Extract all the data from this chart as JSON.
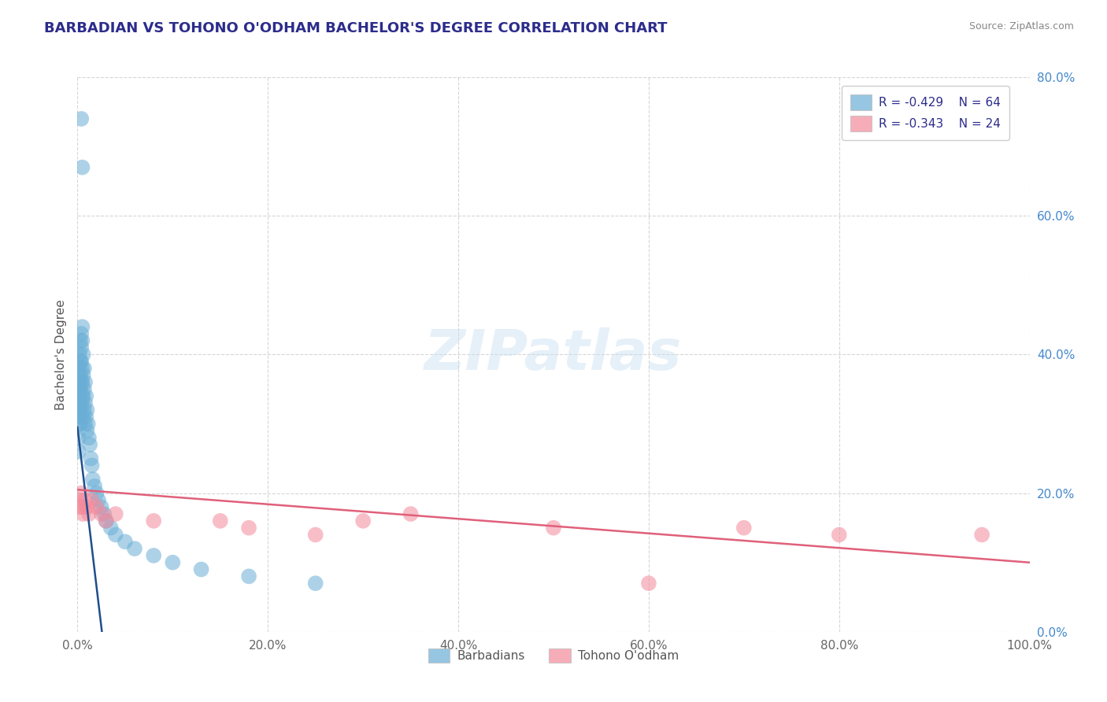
{
  "title": "BARBADIAN VS TOHONO O'ODHAM BACHELOR'S DEGREE CORRELATION CHART",
  "source_text": "Source: ZipAtlas.com",
  "ylabel": "Bachelor's Degree",
  "xlim": [
    0.0,
    1.0
  ],
  "ylim": [
    0.0,
    0.8
  ],
  "xticks": [
    0.0,
    0.2,
    0.4,
    0.6,
    0.8,
    1.0
  ],
  "xtick_labels": [
    "0.0%",
    "20.0%",
    "40.0%",
    "60.0%",
    "80.0%",
    "100.0%"
  ],
  "yticks": [
    0.0,
    0.2,
    0.4,
    0.6,
    0.8
  ],
  "ytick_labels": [
    "0.0%",
    "20.0%",
    "40.0%",
    "60.0%",
    "80.0%"
  ],
  "legend_bottom_labels": [
    "Barbadians",
    "Tohono O'odham"
  ],
  "watermark": "ZIPatlas",
  "blue_color": "#6aaed6",
  "pink_color": "#f48a9b",
  "blue_line_color": "#1f4e8c",
  "pink_line_color": "#e0607a",
  "background_color": "#ffffff",
  "grid_color": "#cccccc",
  "title_color": "#2c2c8c",
  "ytick_color": "#4488cc",
  "xtick_color": "#666666",
  "blue_R": -0.429,
  "blue_N": 64,
  "pink_R": -0.343,
  "pink_N": 24,
  "blue_scatter_x": [
    0.001,
    0.001,
    0.001,
    0.001,
    0.001,
    0.002,
    0.002,
    0.002,
    0.002,
    0.002,
    0.002,
    0.003,
    0.003,
    0.003,
    0.003,
    0.003,
    0.003,
    0.004,
    0.004,
    0.004,
    0.004,
    0.004,
    0.005,
    0.005,
    0.005,
    0.005,
    0.005,
    0.006,
    0.006,
    0.006,
    0.006,
    0.007,
    0.007,
    0.007,
    0.008,
    0.008,
    0.008,
    0.009,
    0.009,
    0.01,
    0.01,
    0.011,
    0.012,
    0.013,
    0.014,
    0.015,
    0.016,
    0.018,
    0.02,
    0.022,
    0.025,
    0.028,
    0.03,
    0.035,
    0.04,
    0.05,
    0.06,
    0.08,
    0.1,
    0.13,
    0.18,
    0.25,
    0.004,
    0.005
  ],
  "blue_scatter_y": [
    0.35,
    0.33,
    0.31,
    0.28,
    0.26,
    0.4,
    0.38,
    0.36,
    0.34,
    0.32,
    0.3,
    0.42,
    0.39,
    0.37,
    0.35,
    0.32,
    0.3,
    0.43,
    0.41,
    0.39,
    0.36,
    0.33,
    0.44,
    0.42,
    0.38,
    0.36,
    0.34,
    0.4,
    0.37,
    0.34,
    0.31,
    0.38,
    0.35,
    0.32,
    0.36,
    0.33,
    0.3,
    0.34,
    0.31,
    0.32,
    0.29,
    0.3,
    0.28,
    0.27,
    0.25,
    0.24,
    0.22,
    0.21,
    0.2,
    0.19,
    0.18,
    0.17,
    0.16,
    0.15,
    0.14,
    0.13,
    0.12,
    0.11,
    0.1,
    0.09,
    0.08,
    0.07,
    0.74,
    0.67
  ],
  "pink_scatter_x": [
    0.002,
    0.003,
    0.004,
    0.005,
    0.006,
    0.008,
    0.01,
    0.012,
    0.015,
    0.02,
    0.025,
    0.03,
    0.04,
    0.08,
    0.15,
    0.18,
    0.25,
    0.35,
    0.5,
    0.7,
    0.8,
    0.95,
    0.6,
    0.3
  ],
  "pink_scatter_y": [
    0.19,
    0.18,
    0.2,
    0.18,
    0.17,
    0.19,
    0.18,
    0.17,
    0.19,
    0.18,
    0.17,
    0.16,
    0.17,
    0.16,
    0.16,
    0.15,
    0.14,
    0.17,
    0.15,
    0.15,
    0.14,
    0.14,
    0.07,
    0.16
  ],
  "blue_line_x": [
    0.0,
    0.03
  ],
  "blue_line_y": [
    0.295,
    -0.05
  ],
  "pink_line_x": [
    0.0,
    1.0
  ],
  "pink_line_y": [
    0.205,
    0.1
  ]
}
